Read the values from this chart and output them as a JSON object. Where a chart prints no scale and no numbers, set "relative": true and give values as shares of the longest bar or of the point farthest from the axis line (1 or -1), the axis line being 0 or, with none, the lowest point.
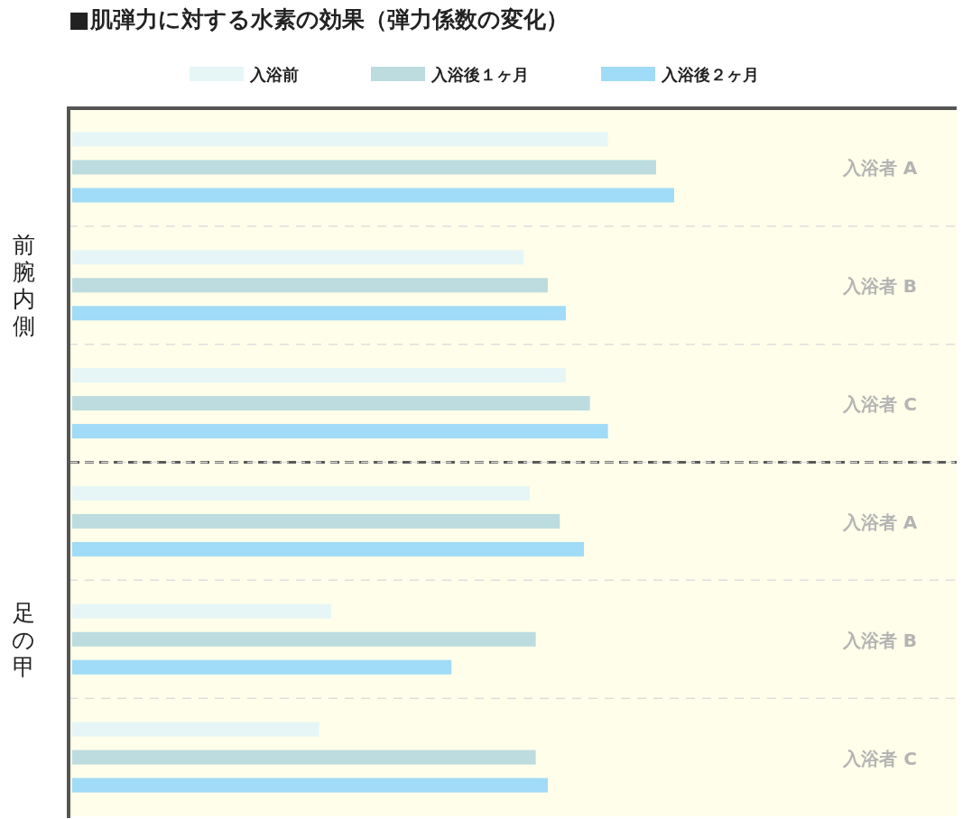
{
  "chart_data": {
    "type": "bar",
    "orientation": "horizontal",
    "relative": true,
    "legend": "top",
    "title": "■肌弾力に対する水素の効果（弾力係数の変化）",
    "categories": [
      "入浴者 A",
      "入浴者 B",
      "入浴者 C",
      "入浴者 A",
      "入浴者 B",
      "入浴者 C"
    ],
    "annotations": [
      "前腕内側",
      "足の甲"
    ],
    "series": [
      {
        "name": "入浴前",
        "color": "#e6f6f7",
        "values": [
          0.89,
          0.75,
          0.82,
          0.76,
          0.43,
          0.41
        ]
      },
      {
        "name": "入浴後１ヶ月",
        "color": "#bcdcdf",
        "values": [
          0.97,
          0.79,
          0.86,
          0.81,
          0.77,
          0.77
        ]
      },
      {
        "name": "入浴後２ヶ月",
        "color": "#a0dbf7",
        "values": [
          1,
          0.82,
          0.89,
          0.85,
          0.63,
          0.79
        ]
      }
    ]
  }
}
